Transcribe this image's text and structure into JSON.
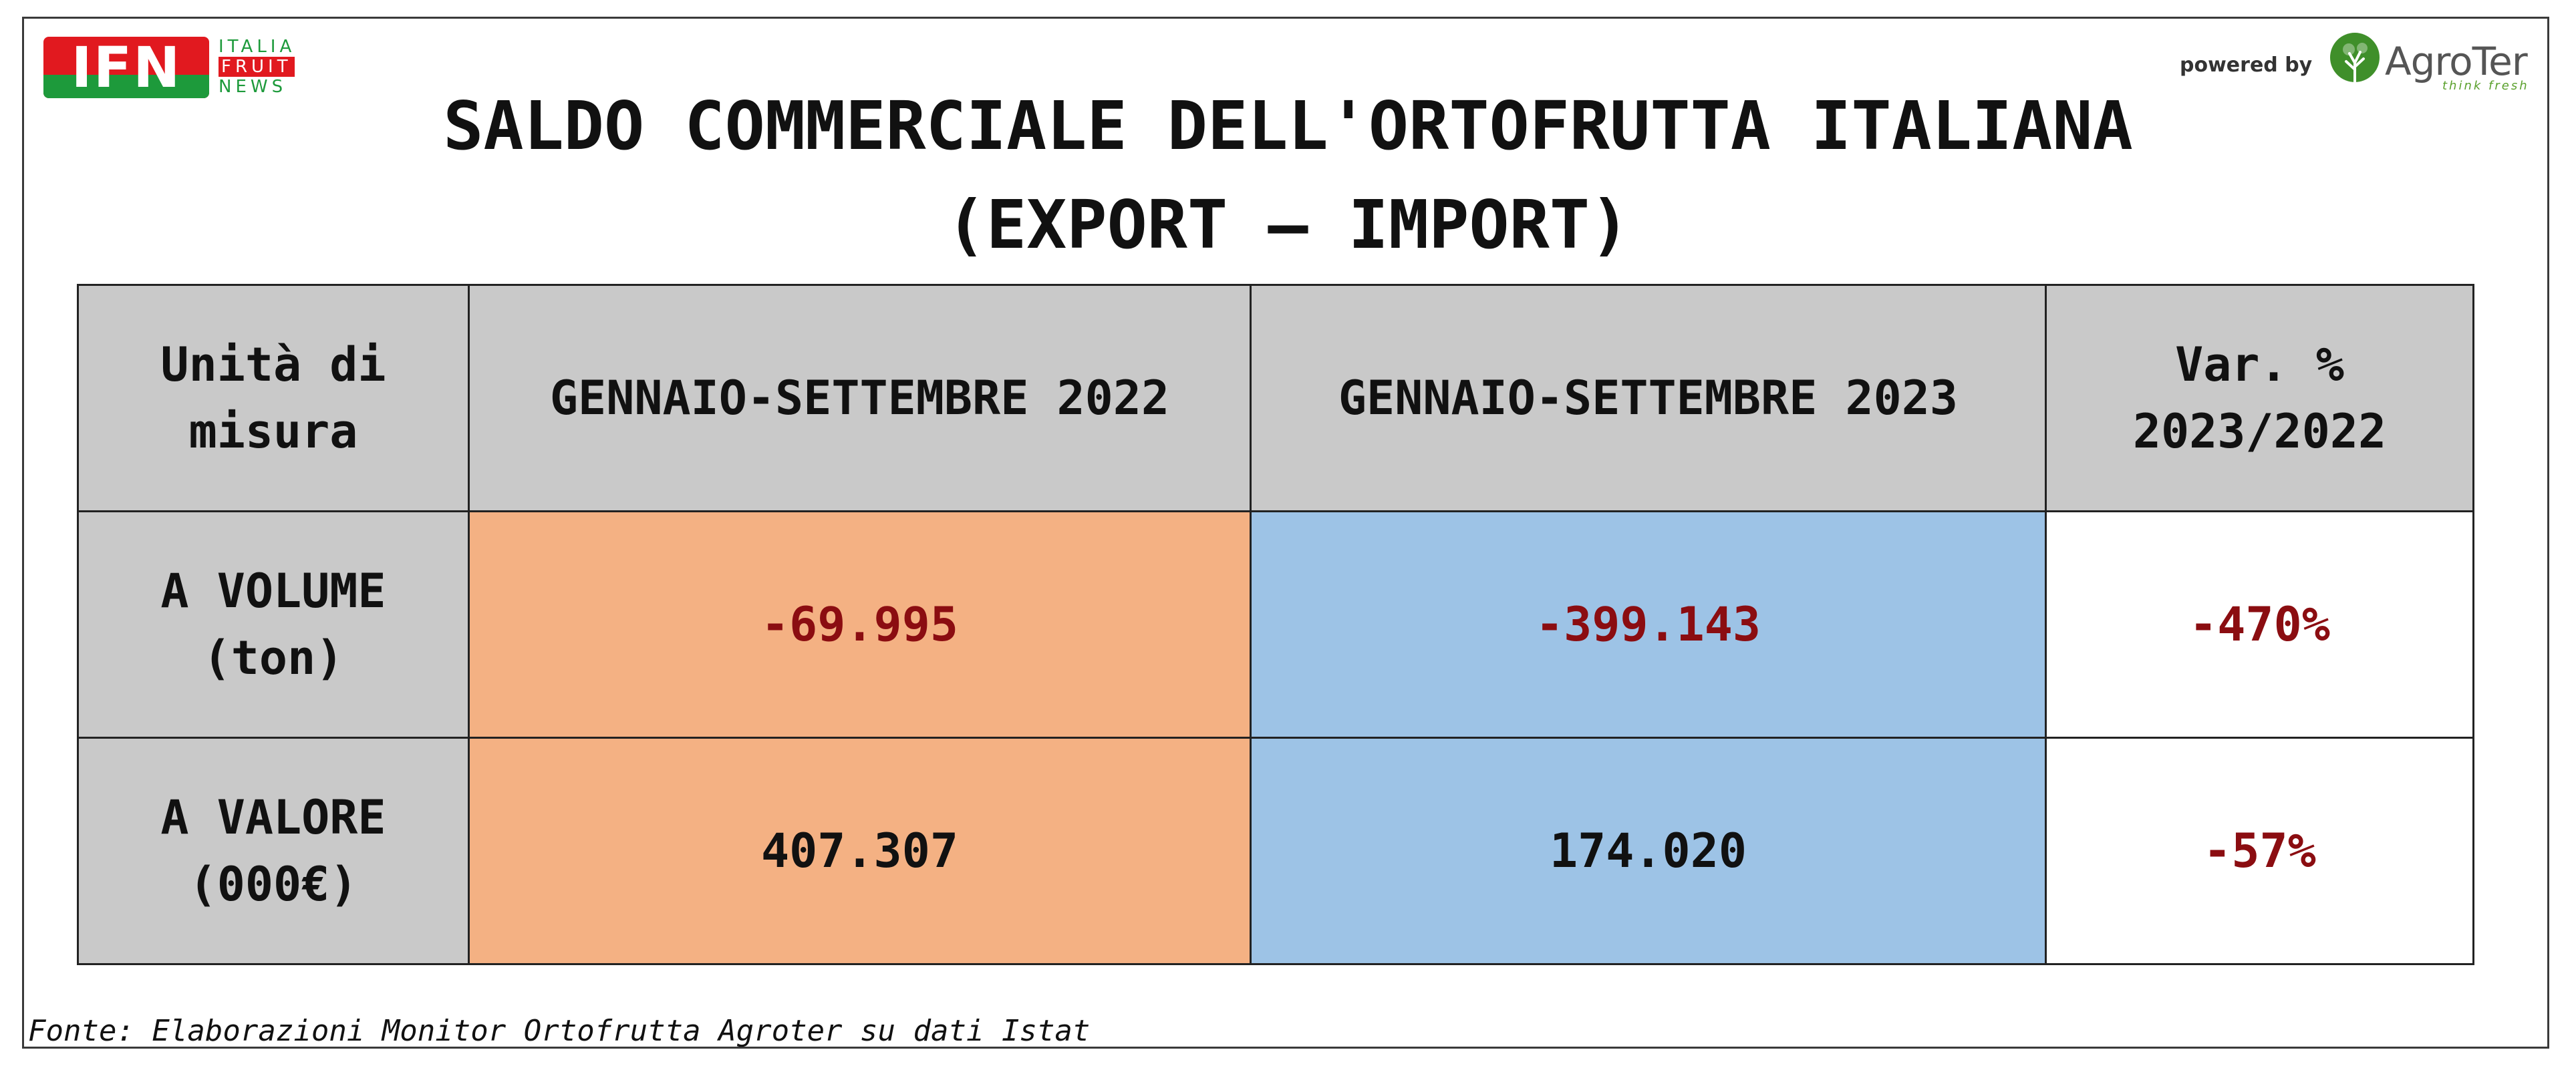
{
  "logos": {
    "ifn": {
      "letters": "IFN",
      "word1": "ITALIA",
      "word2": "FRUIT",
      "word3": "NEWS"
    },
    "powered_by": "powered by",
    "agroter": {
      "name_part1": "Agro",
      "name_part2": "Ter",
      "tagline": "think fresh"
    }
  },
  "title": {
    "line1": "SALDO COMMERCIALE DELL'ORTOFRUTTA ITALIANA",
    "line2": "(EXPORT – IMPORT)"
  },
  "table": {
    "headers": {
      "unit": [
        "Unità di",
        "misura"
      ],
      "col2022": "GENNAIO-SETTEMBRE 2022",
      "col2023": "GENNAIO-SETTEMBRE 2023",
      "var": [
        "Var. %",
        "2023/2022"
      ]
    },
    "rows": [
      {
        "label": [
          "A VOLUME",
          "(ton)"
        ],
        "v2022": "-69.995",
        "v2023": "-399.143",
        "var": "-470%"
      },
      {
        "label": [
          "A VALORE",
          "(000€)"
        ],
        "v2022": "407.307",
        "v2023": "174.020",
        "var": "-57%"
      }
    ]
  },
  "source": "Fonte: Elaborazioni Monitor Ortofrutta Agroter su dati Istat",
  "colors": {
    "header_bg": "#c9c9c9",
    "col2022_bg": "#f4b183",
    "col2023_bg": "#9dc3e6",
    "negative_text": "#8b0d11",
    "ifn_red": "#e1191f",
    "ifn_green": "#1d9a3b"
  }
}
